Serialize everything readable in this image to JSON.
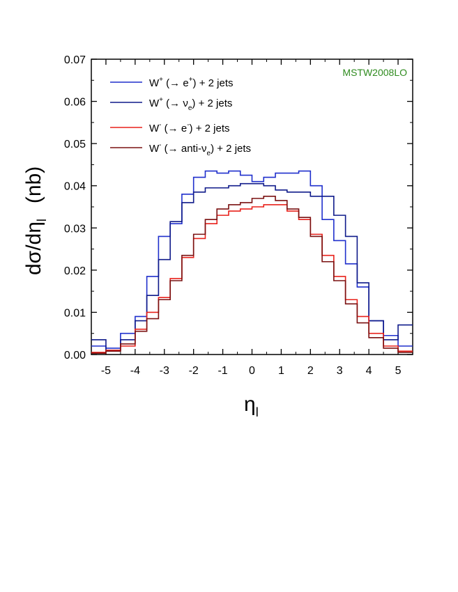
{
  "chart_data": {
    "type": "line",
    "step": true,
    "annotation": "MSTW2008LO",
    "annotation_color": "#2e8b1e",
    "xlabel": "η",
    "xlabel_sub": "l",
    "ylabel": "dσ/dη",
    "ylabel_sub": "l",
    "ylabel_unit": "(nb)",
    "xlim": [
      -5.5,
      5.5
    ],
    "ylim": [
      0,
      0.07
    ],
    "x_ticks": [
      -5,
      -4,
      -3,
      -2,
      -1,
      0,
      1,
      2,
      3,
      4,
      5
    ],
    "x_tick_labels": [
      "-5",
      "-4",
      "-3",
      "-2",
      "-1",
      "0",
      "1",
      "2",
      "3",
      "4",
      "5"
    ],
    "y_ticks": [
      0,
      0.01,
      0.02,
      0.03,
      0.04,
      0.05,
      0.06,
      0.07
    ],
    "y_tick_labels": [
      "0.00",
      "0.01",
      "0.02",
      "0.03",
      "0.04",
      "0.05",
      "0.06",
      "0.07"
    ],
    "grid": false,
    "legend_position": "top-left",
    "bin_edges": [
      -5.5,
      -5.0,
      -4.5,
      -4.0,
      -3.6,
      -3.2,
      -2.8,
      -2.4,
      -2.0,
      -1.6,
      -1.2,
      -0.8,
      -0.4,
      0.0,
      0.4,
      0.8,
      1.2,
      1.6,
      2.0,
      2.4,
      2.8,
      3.2,
      3.6,
      4.0,
      4.5,
      5.0,
      5.5
    ],
    "series": [
      {
        "name": "W+ (→ e+) + 2 jets",
        "legend": {
          "base": "W",
          "sup": "+",
          "mid": " (→ e",
          "sup2": "+",
          "tail": ") + 2 jets"
        },
        "color": "#1f2fcc",
        "values": [
          0.002,
          0.0015,
          0.005,
          0.009,
          0.0185,
          0.028,
          0.031,
          0.038,
          0.042,
          0.0435,
          0.043,
          0.0435,
          0.0425,
          0.041,
          0.042,
          0.043,
          0.043,
          0.0435,
          0.04,
          0.032,
          0.027,
          0.0215,
          0.016,
          0.008,
          0.0045,
          0.002
        ]
      },
      {
        "name": "W+ (→ νe) + 2 jets",
        "legend": {
          "base": "W",
          "sup": "+",
          "mid": " (→ ν",
          "sub": "e",
          "tail": ") + 2 jets"
        },
        "color": "#0f1a8a",
        "values": [
          0.0035,
          0.001,
          0.0035,
          0.008,
          0.014,
          0.0225,
          0.0315,
          0.036,
          0.0385,
          0.0395,
          0.0395,
          0.04,
          0.0405,
          0.0405,
          0.04,
          0.039,
          0.0385,
          0.0385,
          0.0375,
          0.0375,
          0.033,
          0.028,
          0.017,
          0.008,
          0.0035,
          0.007
        ]
      },
      {
        "name": "W- (→ e-) + 2 jets",
        "legend": {
          "base": "W",
          "sup": "-",
          "mid": " (→ e",
          "sup2": "-",
          "tail": ") + 2 jets"
        },
        "color": "#e8201a",
        "values": [
          0.0005,
          0.001,
          0.002,
          0.006,
          0.01,
          0.0135,
          0.018,
          0.023,
          0.0275,
          0.031,
          0.033,
          0.034,
          0.0345,
          0.035,
          0.0355,
          0.0355,
          0.034,
          0.032,
          0.0285,
          0.0235,
          0.0185,
          0.013,
          0.009,
          0.005,
          0.002,
          0.0008
        ]
      },
      {
        "name": "W- (→ anti-νe) + 2 jets",
        "legend": {
          "base": "W",
          "sup": "-",
          "mid": " (→ anti-ν",
          "sub": "e",
          "tail": ") + 2 jets"
        },
        "color": "#7a1010",
        "values": [
          0.0003,
          0.0008,
          0.0025,
          0.0055,
          0.0085,
          0.013,
          0.0175,
          0.0235,
          0.0285,
          0.032,
          0.0345,
          0.0355,
          0.036,
          0.037,
          0.0375,
          0.0365,
          0.0345,
          0.0325,
          0.028,
          0.022,
          0.0175,
          0.012,
          0.0075,
          0.004,
          0.0015,
          0.0005
        ]
      }
    ]
  }
}
